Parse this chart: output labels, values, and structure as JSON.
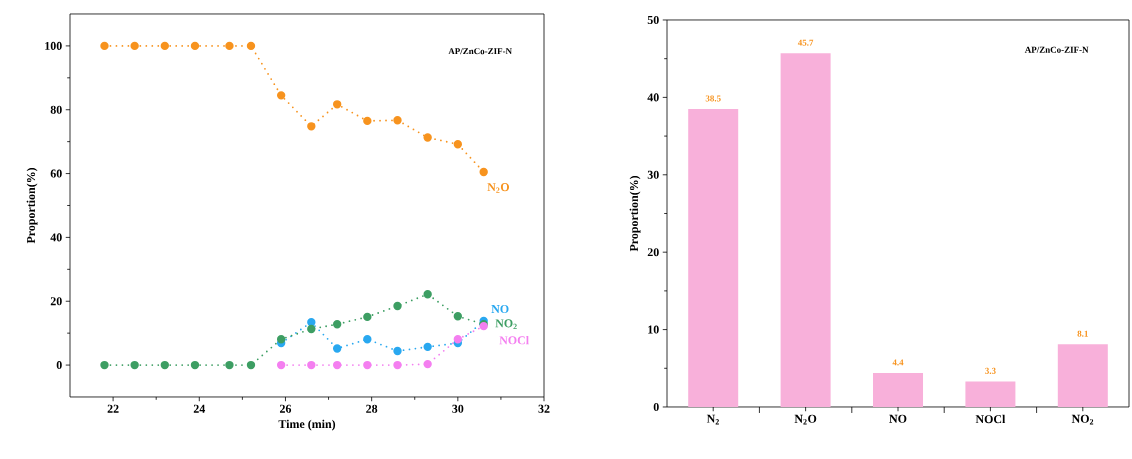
{
  "chart_data": [
    {
      "type": "line",
      "xlabel": "Time (min)",
      "ylabel": "Proportion(%)",
      "annotations": [
        "AP/ZnCo-ZIF-N"
      ],
      "xlim": [
        21,
        32
      ],
      "ylim": [
        -10,
        110
      ],
      "xticks": [
        22,
        24,
        26,
        28,
        30,
        32
      ],
      "yticks": [
        0,
        20,
        40,
        60,
        80,
        100
      ],
      "grid": false,
      "marker": "circle",
      "line_style": "dotted",
      "series": [
        {
          "name": "N$_{2}$O",
          "color": "#f7931e",
          "x": [
            21.8,
            22.5,
            23.2,
            23.9,
            24.7,
            25.2,
            25.9,
            26.6,
            27.2,
            27.9,
            28.6,
            29.3,
            30.0,
            30.6
          ],
          "values": [
            100,
            100,
            100,
            100,
            100,
            100,
            84.5,
            74.8,
            81.7,
            76.5,
            76.7,
            71.3,
            69.2,
            60.5
          ]
        },
        {
          "name": "NO",
          "color": "#29a8f0",
          "x": [
            25.9,
            26.6,
            27.2,
            27.9,
            28.6,
            29.3,
            30.0,
            30.6
          ],
          "values": [
            6.9,
            13.4,
            5.2,
            8.1,
            4.4,
            5.7,
            6.9,
            13.8
          ]
        },
        {
          "name": "NO$_{2}$",
          "color": "#3d9e63",
          "x": [
            21.8,
            22.5,
            23.2,
            23.9,
            24.7,
            25.2,
            25.9,
            26.6,
            27.2,
            27.9,
            28.6,
            29.3,
            30.0,
            30.6
          ],
          "values": [
            0,
            0,
            0,
            0,
            0,
            0,
            8.1,
            11.3,
            12.8,
            15.1,
            18.5,
            22.2,
            15.3,
            12.8
          ]
        },
        {
          "name": "NOCl",
          "color": "#f47ff0",
          "x": [
            25.9,
            26.6,
            27.2,
            27.9,
            28.6,
            29.3,
            30.0,
            30.6
          ],
          "values": [
            0,
            0,
            0,
            0,
            0,
            0.3,
            8.1,
            12.2
          ]
        }
      ]
    },
    {
      "type": "bar",
      "ylabel": "Proportion(%)",
      "annotations": [
        "AP/ZnCo-ZIF-N"
      ],
      "categories": [
        "N$_{2}$",
        "N$_{2}$O",
        "NO",
        "NOCl",
        "NO$_{2}$"
      ],
      "values": [
        38.5,
        45.7,
        4.4,
        3.3,
        8.1
      ],
      "color": "#f8b0da",
      "ylim": [
        0,
        50
      ],
      "yticks": [
        0,
        10,
        20,
        30,
        40,
        50
      ],
      "data_labels": true,
      "grid": false
    }
  ]
}
